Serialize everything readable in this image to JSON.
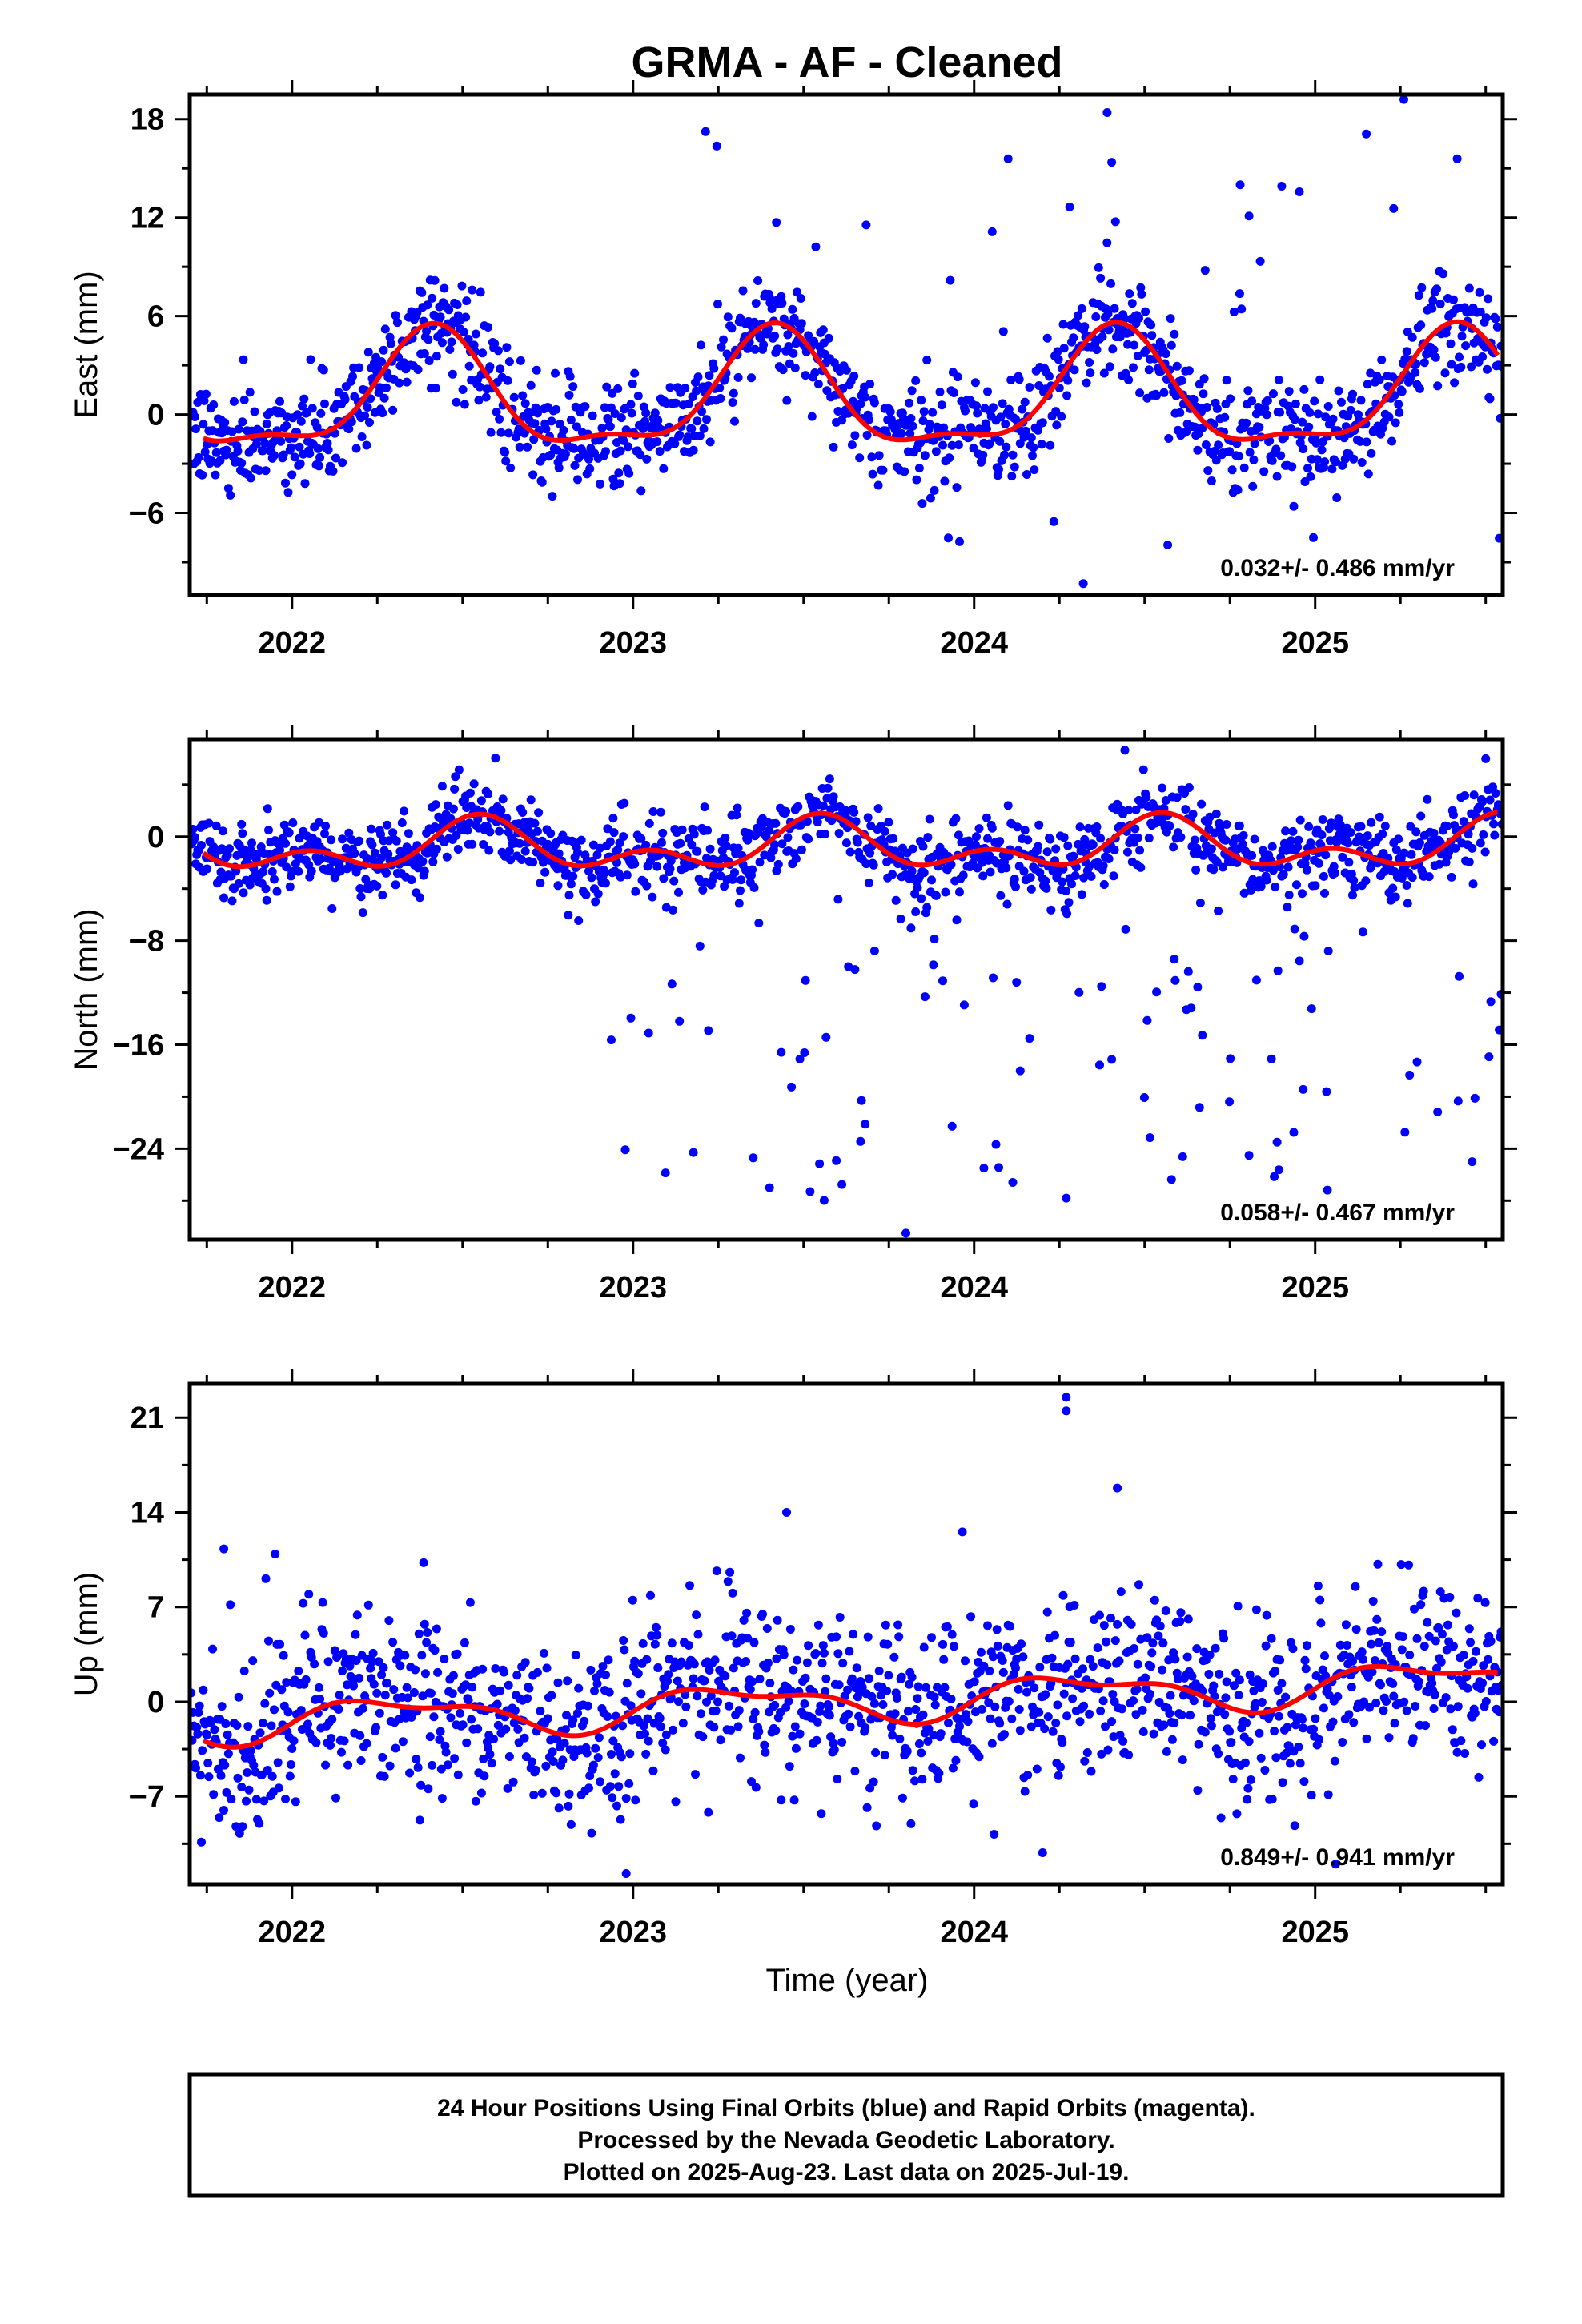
{
  "title": "GRMA  - AF - Cleaned",
  "x_axis_label": "Time (year)",
  "footer": {
    "line1": "24 Hour Positions Using Final Orbits (blue) and Rapid Orbits (magenta).",
    "line2": "Processed by the Nevada Geodetic Laboratory.",
    "line3": "Plotted on 2025-Aug-23. Last data on 2025-Jul-19."
  },
  "colors": {
    "final_orbits": "#0000ff",
    "fit": "#ff0000",
    "frame": "#000000"
  },
  "chart_data": [
    {
      "type": "scatter",
      "component": "east",
      "ylabel": "East (mm)",
      "xlim": [
        2021.7,
        2025.55
      ],
      "ylim": [
        -11,
        19.5
      ],
      "xticks": [
        2022,
        2023,
        2024,
        2025
      ],
      "yticks": [
        18,
        12,
        6,
        0,
        -6
      ],
      "ytick_labels": [
        "18",
        "12",
        "6",
        "0",
        "−6"
      ],
      "rate": "0.032+/- 0.486 mm/yr",
      "fit": {
        "offset": 1.0,
        "annual_amp": 3.4,
        "annual_peak": 0.41,
        "semi_amp": 1.2,
        "semi_peak": 0.42,
        "trend": 0.032,
        "t0": 2023.6
      },
      "scatter": {
        "sigma": 1.6,
        "outlier_rate": 0.05,
        "outlier_range": [
          -8,
          18
        ],
        "outlier_start": 2023.2
      },
      "extra_points": [
        [
          2025.26,
          19.2
        ],
        [
          2024.32,
          -10.3
        ],
        [
          2024.39,
          18.4
        ],
        [
          2023.42,
          11.7
        ],
        [
          2025.15,
          17.1
        ],
        [
          2024.78,
          14.0
        ]
      ],
      "grid": false,
      "legend": "none"
    },
    {
      "type": "scatter",
      "component": "north",
      "ylabel": "North (mm)",
      "xlim": [
        2021.7,
        2025.55
      ],
      "ylim": [
        -31,
        7.5
      ],
      "xticks": [
        2022,
        2023,
        2024,
        2025
      ],
      "yticks": [
        0,
        -8,
        -16,
        -24
      ],
      "ytick_labels": [
        "0",
        "−8",
        "−16",
        "−24"
      ],
      "rate": "0.058+/- 0.467 mm/yr",
      "fit": {
        "offset": -0.8,
        "annual_amp": 1.4,
        "annual_peak": 0.55,
        "semi_amp": 1.2,
        "semi_peak": 0.05,
        "trend": 0.058,
        "t0": 2023.6
      },
      "scatter": {
        "sigma": 1.5,
        "outlier_rate": 0.12,
        "outlier_range": [
          -28,
          -3
        ],
        "outlier_start": 2022.8
      },
      "extra_points": [
        [
          2023.8,
          -30.5
        ],
        [
          2023.4,
          -27.0
        ],
        [
          2024.27,
          -27.8
        ],
        [
          2025.46,
          -25.0
        ],
        [
          2025.5,
          6.0
        ]
      ],
      "grid": false,
      "legend": "none"
    },
    {
      "type": "scatter",
      "component": "up",
      "ylabel": "Up (mm)",
      "xlim": [
        2021.7,
        2025.55
      ],
      "ylim": [
        -13.5,
        23.5
      ],
      "xticks": [
        2022,
        2023,
        2024,
        2025
      ],
      "yticks": [
        21,
        14,
        7,
        0,
        -7
      ],
      "ytick_labels": [
        "21",
        "14",
        "7",
        "0",
        "−7"
      ],
      "rate": "0.849+/- 0.941 mm/yr",
      "fit": {
        "offset": 0.0,
        "annual_amp": 1.3,
        "annual_peak": 0.3,
        "semi_amp": 0.6,
        "semi_peak": 0.1,
        "trend": 0.849,
        "t0": 2023.6
      },
      "scatter": {
        "sigma": 3.2,
        "outlier_rate": 0.02,
        "outlier_range": [
          -12,
          14
        ],
        "outlier_start": 2021.7
      },
      "extra_points": [
        [
          2024.27,
          22.5
        ],
        [
          2024.27,
          21.5
        ],
        [
          2024.42,
          15.8
        ],
        [
          2023.45,
          14.0
        ],
        [
          2021.8,
          11.3
        ],
        [
          2022.98,
          -12.7
        ],
        [
          2025.06,
          -12.0
        ]
      ],
      "grid": false,
      "legend": "none"
    }
  ]
}
